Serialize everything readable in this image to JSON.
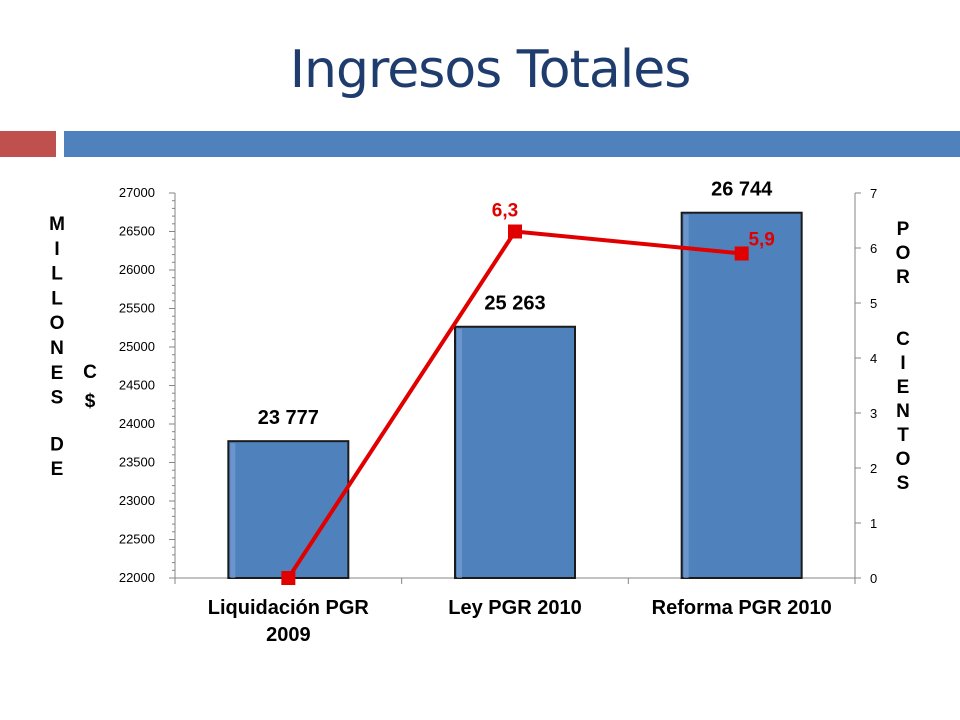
{
  "title": "Ingresos Totales",
  "colors": {
    "title": "#1f3c6e",
    "accent_red": "#c0504d",
    "accent_blue": "#4f81bd",
    "bar_fill": "#4f81bd",
    "line": "#e00000"
  },
  "chart_data": {
    "type": "bar",
    "categories": [
      [
        "Liquidación PGR",
        "2009"
      ],
      [
        "Ley PGR 2010"
      ],
      [
        "Reforma PGR 2010"
      ]
    ],
    "series": [
      {
        "type": "bar",
        "axis": "left",
        "values": [
          23777,
          25263,
          26744
        ],
        "labels": [
          "23 777",
          "25 263",
          "26 744"
        ]
      },
      {
        "type": "line",
        "axis": "right",
        "values": [
          0,
          6.3,
          5.9
        ],
        "labels": [
          "",
          "6,3",
          "5,9"
        ]
      }
    ],
    "y_left": {
      "title": "MILLONES DE",
      "unit": "C$",
      "range": [
        22000,
        27000
      ],
      "ticks": [
        "22000",
        "22500",
        "23000",
        "23500",
        "24000",
        "24500",
        "25000",
        "25500",
        "26000",
        "26500",
        "27000"
      ]
    },
    "y_right": {
      "title": "PORCIENTOS",
      "range": [
        0,
        7
      ],
      "ticks": [
        "0",
        "1",
        "2",
        "3",
        "4",
        "5",
        "6",
        "7"
      ]
    },
    "grid": false,
    "legend": "none"
  }
}
